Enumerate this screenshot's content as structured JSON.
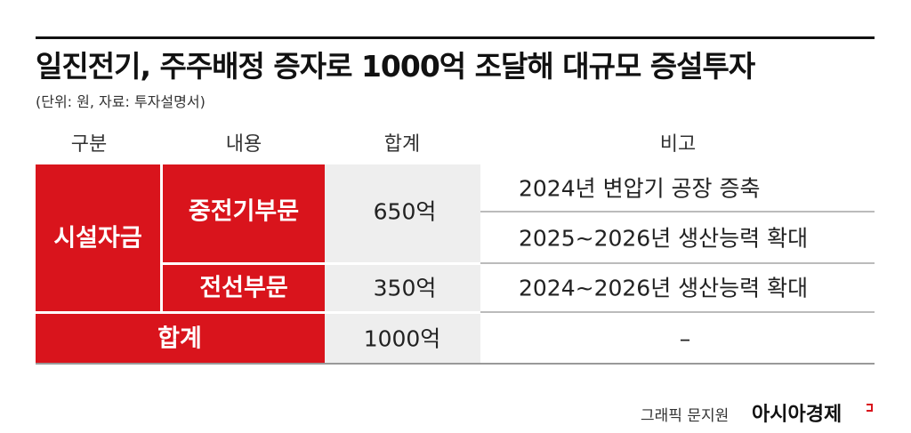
{
  "header": {
    "title": "일진전기, 주주배정 증자로 1000억 조달해 대규모 증설투자",
    "subtitle": "(단위: 원, 자료: 투자설명서)"
  },
  "table": {
    "columns": [
      "구분",
      "내용",
      "합계",
      "비고"
    ],
    "groups": [
      {
        "label": "시설자금",
        "items": [
          {
            "label": "중전기부문",
            "amount": "650억",
            "notes": [
              "2024년 변압기 공장 증축",
              "2025~2026년 생산능력 확대"
            ]
          },
          {
            "label": "전선부문",
            "amount": "350억",
            "notes": [
              "2024~2026년 생산능력 확대"
            ]
          }
        ]
      }
    ],
    "total": {
      "label": "합계",
      "amount": "1000억",
      "note": "–"
    }
  },
  "footer": {
    "credit": "그래픽 문지원",
    "brand": "아시아경제"
  }
}
